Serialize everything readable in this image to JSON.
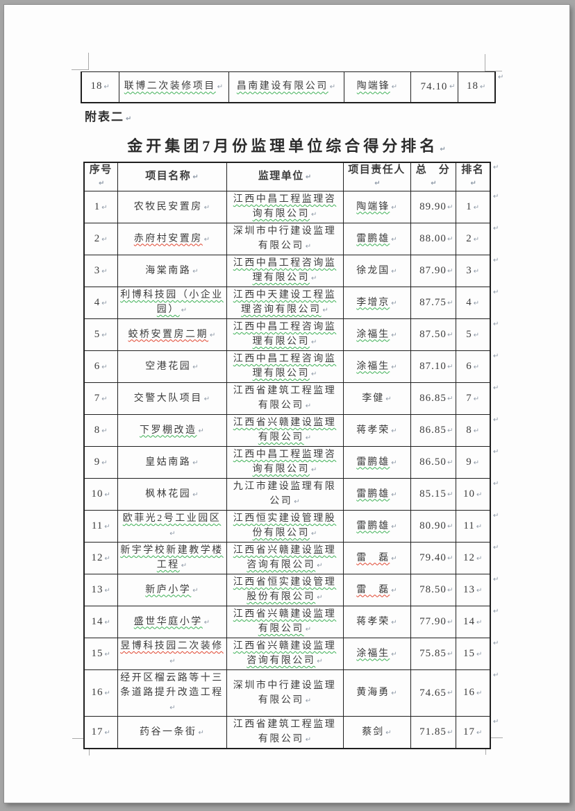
{
  "document": {
    "appendix_label": "附表二",
    "title": "金开集团7月份监理单位综合得分排名"
  },
  "marks": {
    "pilcrow": "↵"
  },
  "colors": {
    "page_background": "#fdfdfd",
    "desktop_background": "#a6a6a6",
    "text": "#3b3b3b",
    "table_border": "#1f1f1f",
    "squiggle_green": "#3cb054",
    "squiggle_red": "#e0442e",
    "paragraph_mark": "#8f9aa8"
  },
  "prev_table_last_row": {
    "seq": "18",
    "project": "联博二次装修项目",
    "project_u": "green",
    "company": "昌南建设有限公司",
    "company_u": "green",
    "person": "陶端锋",
    "person_u": "green",
    "score": "74.10",
    "rank": "18"
  },
  "main_table": {
    "headers": [
      "序号",
      "项目名称",
      "监理单位",
      "项目责任人",
      "总　分",
      "排名"
    ],
    "rows": [
      {
        "seq": "1",
        "project": "农牧民安置房",
        "project_u": null,
        "company": "江西中昌工程监理咨询有限公司",
        "company_u": "green",
        "person": "陶端锋",
        "person_u": "green",
        "score": "89.90",
        "rank": "1"
      },
      {
        "seq": "2",
        "project": "赤府村安置房",
        "project_u": "red",
        "company": "深圳市中行建设监理有限公司",
        "company_u": null,
        "person": "雷鹏雄",
        "person_u": "green",
        "score": "88.00",
        "rank": "2"
      },
      {
        "seq": "3",
        "project": "海棠南路",
        "project_u": null,
        "company": "江西中昌工程咨询监理有限公司",
        "company_u": "green",
        "person": "徐龙国",
        "person_u": null,
        "score": "87.90",
        "rank": "3"
      },
      {
        "seq": "4",
        "project": "利博科技园（小企业园）",
        "project_u": "green",
        "company": "江西中天建设工程监理咨询有限公司",
        "company_u": "green",
        "person": "李增京",
        "person_u": "green",
        "score": "87.75",
        "rank": "4"
      },
      {
        "seq": "5",
        "project": "蛟桥安置房二期",
        "project_u": "red",
        "company": "江西中昌工程咨询监理有限公司",
        "company_u": "green",
        "person": "涂福生",
        "person_u": "green",
        "score": "87.50",
        "rank": "5"
      },
      {
        "seq": "6",
        "project": "空港花园",
        "project_u": null,
        "company": "江西中昌工程咨询监理有限公司",
        "company_u": "green",
        "person": "涂福生",
        "person_u": "green",
        "score": "87.10",
        "rank": "6"
      },
      {
        "seq": "7",
        "project": "交警大队项目",
        "project_u": null,
        "company": "江西省建筑工程监理有限公司",
        "company_u": null,
        "person": "李健",
        "person_u": null,
        "score": "86.85",
        "rank": "7"
      },
      {
        "seq": "8",
        "project": "下罗棚改造",
        "project_u": "green",
        "company": "江西省兴赣建设监理有限公司",
        "company_u": "green",
        "person": "蒋孝荣",
        "person_u": null,
        "score": "86.85",
        "rank": "8"
      },
      {
        "seq": "9",
        "project": "皇姑南路",
        "project_u": null,
        "company": "江西中昌工程监理咨询有限公司",
        "company_u": "green",
        "person": "雷鹏雄",
        "person_u": "green",
        "score": "86.50",
        "rank": "9"
      },
      {
        "seq": "10",
        "project": "枫林花园",
        "project_u": null,
        "company": "九江市建设监理有限公司",
        "company_u": null,
        "person": "雷鹏雄",
        "person_u": "green",
        "score": "85.15",
        "rank": "10"
      },
      {
        "seq": "11",
        "project": "欧菲光2号工业园区",
        "project_u": "green",
        "company": "江西恒实建设管理股份有限公司",
        "company_u": "green",
        "person": "雷鹏雄",
        "person_u": "green",
        "score": "80.90",
        "rank": "11"
      },
      {
        "seq": "12",
        "project": "新宇学校新建教学楼工程",
        "project_u": "green",
        "company": "江西省兴赣建设监理咨询有限公司",
        "company_u": "green",
        "person": "雷　磊",
        "person_u": "red",
        "score": "79.40",
        "rank": "12"
      },
      {
        "seq": "13",
        "project": "新庐小学",
        "project_u": "green",
        "company": "江西省恒实建设管理股份有限公司",
        "company_u": "green",
        "person": "雷　磊",
        "person_u": "red",
        "score": "78.50",
        "rank": "13"
      },
      {
        "seq": "14",
        "project": "盛世华庭小学",
        "project_u": "green",
        "company": "江西省兴赣建设监理有限公司",
        "company_u": "green",
        "person": "蒋孝荣",
        "person_u": null,
        "score": "77.90",
        "rank": "14"
      },
      {
        "seq": "15",
        "project": "昱博科技园二次装修",
        "project_u": "red",
        "company": "江西省兴赣建设监理咨询有限公司",
        "company_u": "green",
        "person": "涂福生",
        "person_u": "green",
        "score": "75.85",
        "rank": "15"
      },
      {
        "seq": "16",
        "project": "经开区榴云路等十三条道路提升改造工程",
        "project_u": null,
        "company": "深圳市中行建设监理有限公司",
        "company_u": null,
        "person": "黄海勇",
        "person_u": null,
        "score": "74.65",
        "rank": "16"
      },
      {
        "seq": "17",
        "project": "药谷一条街",
        "project_u": null,
        "company": "江西省建筑工程监理有限公司",
        "company_u": null,
        "person": "蔡剑",
        "person_u": null,
        "score": "71.85",
        "rank": "17"
      }
    ]
  }
}
